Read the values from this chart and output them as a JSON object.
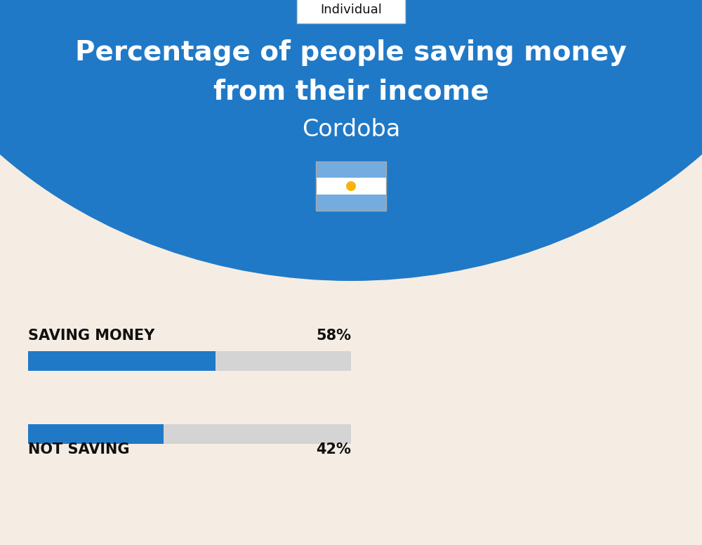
{
  "title_line1": "Percentage of people saving money",
  "title_line2": "from their income",
  "subtitle": "Cordoba",
  "tag_label": "Individual",
  "background_color": "#f5ede3",
  "header_color": "#2079c7",
  "bar1_label": "SAVING MONEY",
  "bar1_value": 58,
  "bar1_pct": "58%",
  "bar2_label": "NOT SAVING",
  "bar2_value": 42,
  "bar2_pct": "42%",
  "bar_fill_color": "#2079c7",
  "bar_bg_color": "#d4d4d4",
  "title_color": "#ffffff",
  "subtitle_color": "#ffffff",
  "label_color": "#111111",
  "pct_color": "#111111",
  "tag_bg": "#ffffff",
  "tag_text_color": "#111111",
  "fig_width": 10.0,
  "fig_height": 7.76,
  "dpi": 100
}
